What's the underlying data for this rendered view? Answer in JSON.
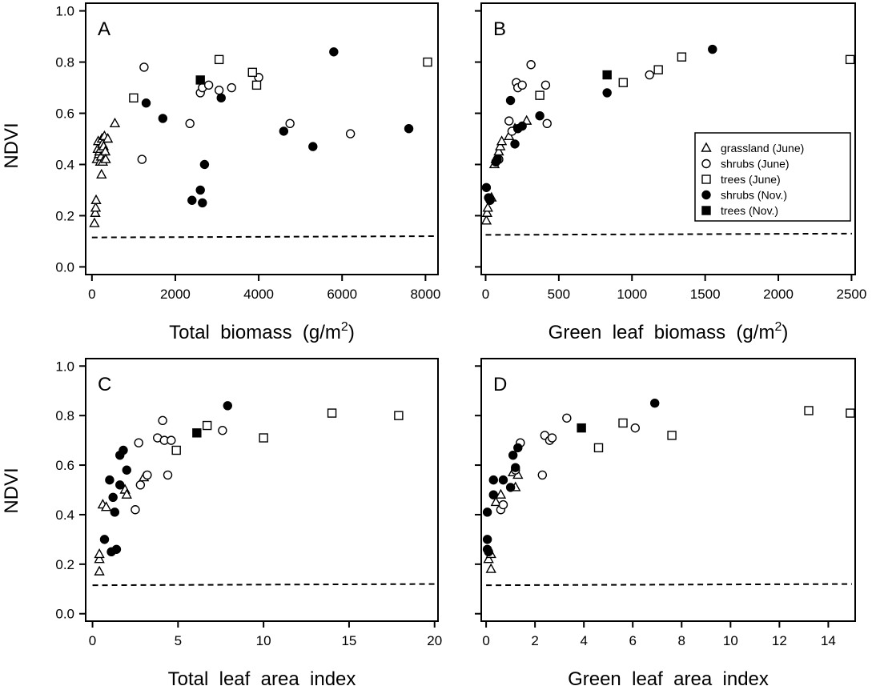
{
  "y_axis_label": "NDVI",
  "legend": [
    {
      "key": "grassland_june",
      "label": "grassland (June)",
      "marker": "triangle-open"
    },
    {
      "key": "shrubs_june",
      "label": "shrubs (June)",
      "marker": "circle-open"
    },
    {
      "key": "trees_june",
      "label": "trees (June)",
      "marker": "square-open"
    },
    {
      "key": "shrubs_nov",
      "label": "shrubs (Nov.)",
      "marker": "circle-filled"
    },
    {
      "key": "trees_nov",
      "label": "trees (Nov.)",
      "marker": "square-filled"
    }
  ],
  "chart_data": [
    {
      "type": "scatter",
      "panel": "A",
      "xlabel": "Total  biomass  (g/m",
      "xlabel_sup": "2",
      "xlabel_tail": ")",
      "ylabel": "NDVI",
      "xlim": [
        -150,
        8300
      ],
      "ylim": [
        -0.03,
        1.03
      ],
      "xticks": [
        0,
        2000,
        4000,
        6000,
        8000
      ],
      "yticks": [
        0.0,
        0.2,
        0.4,
        0.6,
        0.8,
        1.0
      ],
      "ytick_labels": [
        "0.0",
        "0.2",
        "0.4",
        "0.6",
        "0.8",
        "1.0"
      ],
      "show_xtick_labels": true,
      "show_ytick_labels": true,
      "grid": false,
      "baseline": {
        "style": "dashed",
        "from": [
          0,
          0.115
        ],
        "to": [
          8300,
          0.12
        ]
      },
      "series": [
        {
          "key": "grassland_june",
          "points": [
            [
              60,
              0.17
            ],
            [
              80,
              0.21
            ],
            [
              90,
              0.23
            ],
            [
              100,
              0.26
            ],
            [
              120,
              0.42
            ],
            [
              140,
              0.46
            ],
            [
              150,
              0.49
            ],
            [
              170,
              0.44
            ],
            [
              180,
              0.45
            ],
            [
              200,
              0.41
            ],
            [
              210,
              0.46
            ],
            [
              220,
              0.43
            ],
            [
              230,
              0.36
            ],
            [
              240,
              0.5
            ],
            [
              250,
              0.48
            ],
            [
              260,
              0.41
            ],
            [
              280,
              0.47
            ],
            [
              300,
              0.51
            ],
            [
              320,
              0.45
            ],
            [
              330,
              0.42
            ],
            [
              380,
              0.5
            ],
            [
              550,
              0.56
            ]
          ]
        },
        {
          "key": "shrubs_june",
          "points": [
            [
              1200,
              0.42
            ],
            [
              1250,
              0.78
            ],
            [
              2350,
              0.56
            ],
            [
              2600,
              0.68
            ],
            [
              2650,
              0.7
            ],
            [
              2800,
              0.71
            ],
            [
              3050,
              0.69
            ],
            [
              3350,
              0.7
            ],
            [
              4000,
              0.74
            ],
            [
              4750,
              0.56
            ],
            [
              6200,
              0.52
            ]
          ]
        },
        {
          "key": "trees_june",
          "points": [
            [
              1000,
              0.66
            ],
            [
              3050,
              0.81
            ],
            [
              3850,
              0.76
            ],
            [
              3950,
              0.71
            ],
            [
              8050,
              0.8
            ]
          ]
        },
        {
          "key": "shrubs_nov",
          "points": [
            [
              1300,
              0.64
            ],
            [
              1700,
              0.58
            ],
            [
              2400,
              0.26
            ],
            [
              2600,
              0.3
            ],
            [
              2650,
              0.25
            ],
            [
              2700,
              0.4
            ],
            [
              3100,
              0.66
            ],
            [
              4600,
              0.53
            ],
            [
              5300,
              0.47
            ],
            [
              5800,
              0.84
            ],
            [
              7600,
              0.54
            ]
          ]
        },
        {
          "key": "trees_nov",
          "points": [
            [
              2600,
              0.73
            ]
          ]
        }
      ]
    },
    {
      "type": "scatter",
      "panel": "B",
      "xlabel": "Green  leaf  biomass  (g/m",
      "xlabel_sup": "2",
      "xlabel_tail": ")",
      "ylabel": "",
      "xlim": [
        -30,
        2525
      ],
      "ylim": [
        -0.03,
        1.03
      ],
      "xticks": [
        0,
        500,
        1000,
        1500,
        2000,
        2500
      ],
      "yticks": [
        0.0,
        0.2,
        0.4,
        0.6,
        0.8,
        1.0
      ],
      "ytick_labels": [
        "0.0",
        "0.2",
        "0.4",
        "0.6",
        "0.8",
        "1.0"
      ],
      "show_xtick_labels": true,
      "show_ytick_labels": false,
      "grid": false,
      "baseline": {
        "style": "dashed",
        "from": [
          0,
          0.125
        ],
        "to": [
          2525,
          0.13
        ]
      },
      "series": [
        {
          "key": "grassland_june",
          "points": [
            [
              5,
              0.18
            ],
            [
              10,
              0.21
            ],
            [
              15,
              0.23
            ],
            [
              40,
              0.27
            ],
            [
              60,
              0.4
            ],
            [
              70,
              0.42
            ],
            [
              80,
              0.43
            ],
            [
              90,
              0.45
            ],
            [
              100,
              0.47
            ],
            [
              110,
              0.49
            ],
            [
              160,
              0.51
            ],
            [
              200,
              0.54
            ],
            [
              280,
              0.57
            ]
          ]
        },
        {
          "key": "shrubs_june",
          "points": [
            [
              90,
              0.42
            ],
            [
              160,
              0.57
            ],
            [
              180,
              0.53
            ],
            [
              210,
              0.72
            ],
            [
              220,
              0.7
            ],
            [
              250,
              0.71
            ],
            [
              310,
              0.79
            ],
            [
              370,
              0.67
            ],
            [
              410,
              0.71
            ],
            [
              420,
              0.56
            ],
            [
              1120,
              0.75
            ]
          ]
        },
        {
          "key": "trees_june",
          "points": [
            [
              370,
              0.67
            ],
            [
              940,
              0.72
            ],
            [
              1180,
              0.77
            ],
            [
              1340,
              0.82
            ],
            [
              2490,
              0.81
            ]
          ]
        },
        {
          "key": "shrubs_nov",
          "points": [
            [
              5,
              0.31
            ],
            [
              20,
              0.27
            ],
            [
              30,
              0.26
            ],
            [
              70,
              0.41
            ],
            [
              80,
              0.42
            ],
            [
              170,
              0.65
            ],
            [
              200,
              0.48
            ],
            [
              220,
              0.54
            ],
            [
              250,
              0.55
            ],
            [
              370,
              0.59
            ],
            [
              830,
              0.68
            ],
            [
              1550,
              0.85
            ]
          ]
        },
        {
          "key": "trees_nov",
          "points": [
            [
              830,
              0.75
            ]
          ]
        }
      ]
    },
    {
      "type": "scatter",
      "panel": "C",
      "xlabel": "Total  leaf  area  index",
      "ylabel": "NDVI",
      "xlim": [
        -0.4,
        20.2
      ],
      "ylim": [
        -0.03,
        1.03
      ],
      "xticks": [
        0,
        5,
        10,
        15,
        20
      ],
      "yticks": [
        0.0,
        0.2,
        0.4,
        0.6,
        0.8,
        1.0
      ],
      "ytick_labels": [
        "0.0",
        "0.2",
        "0.4",
        "0.6",
        "0.8",
        "1.0"
      ],
      "show_xtick_labels": true,
      "show_ytick_labels": true,
      "grid": false,
      "baseline": {
        "style": "dashed",
        "from": [
          0,
          0.115
        ],
        "to": [
          20.2,
          0.12
        ]
      },
      "series": [
        {
          "key": "grassland_june",
          "points": [
            [
              0.4,
              0.17
            ],
            [
              0.4,
              0.22
            ],
            [
              0.4,
              0.24
            ],
            [
              0.6,
              0.44
            ],
            [
              0.8,
              0.43
            ],
            [
              1.9,
              0.5
            ],
            [
              2.0,
              0.48
            ],
            [
              3.0,
              0.55
            ]
          ]
        },
        {
          "key": "shrubs_june",
          "points": [
            [
              2.5,
              0.42
            ],
            [
              2.7,
              0.69
            ],
            [
              2.8,
              0.52
            ],
            [
              3.2,
              0.56
            ],
            [
              3.8,
              0.71
            ],
            [
              4.1,
              0.78
            ],
            [
              4.2,
              0.7
            ],
            [
              4.4,
              0.56
            ],
            [
              4.6,
              0.7
            ],
            [
              7.6,
              0.74
            ]
          ]
        },
        {
          "key": "trees_june",
          "points": [
            [
              4.9,
              0.66
            ],
            [
              6.7,
              0.76
            ],
            [
              10.0,
              0.71
            ],
            [
              14.0,
              0.81
            ],
            [
              17.9,
              0.8
            ]
          ]
        },
        {
          "key": "shrubs_nov",
          "points": [
            [
              0.7,
              0.3
            ],
            [
              1.0,
              0.54
            ],
            [
              1.1,
              0.25
            ],
            [
              1.2,
              0.47
            ],
            [
              1.3,
              0.41
            ],
            [
              1.4,
              0.26
            ],
            [
              1.6,
              0.52
            ],
            [
              1.6,
              0.64
            ],
            [
              1.8,
              0.66
            ],
            [
              2.0,
              0.58
            ],
            [
              7.9,
              0.84
            ]
          ]
        },
        {
          "key": "trees_nov",
          "points": [
            [
              6.1,
              0.73
            ]
          ]
        }
      ]
    },
    {
      "type": "scatter",
      "panel": "D",
      "xlabel": "Green  leaf  area  index",
      "ylabel": "",
      "xlim": [
        -0.2,
        15.1
      ],
      "ylim": [
        -0.03,
        1.03
      ],
      "xticks": [
        0,
        2,
        4,
        6,
        8,
        10,
        12,
        14
      ],
      "yticks": [
        0.0,
        0.2,
        0.4,
        0.6,
        0.8,
        1.0
      ],
      "ytick_labels": [
        "0.0",
        "0.2",
        "0.4",
        "0.6",
        "0.8",
        "1.0"
      ],
      "show_xtick_labels": true,
      "show_ytick_labels": false,
      "grid": false,
      "baseline": {
        "style": "dashed",
        "from": [
          0,
          0.115
        ],
        "to": [
          15.1,
          0.12
        ]
      },
      "series": [
        {
          "key": "grassland_june",
          "points": [
            [
              0.1,
              0.22
            ],
            [
              0.2,
              0.18
            ],
            [
              0.2,
              0.24
            ],
            [
              0.4,
              0.45
            ],
            [
              0.6,
              0.48
            ],
            [
              1.1,
              0.57
            ],
            [
              1.2,
              0.51
            ],
            [
              1.3,
              0.56
            ]
          ]
        },
        {
          "key": "shrubs_june",
          "points": [
            [
              0.6,
              0.42
            ],
            [
              0.7,
              0.44
            ],
            [
              1.2,
              0.58
            ],
            [
              1.4,
              0.69
            ],
            [
              2.3,
              0.56
            ],
            [
              2.4,
              0.72
            ],
            [
              2.6,
              0.7
            ],
            [
              2.7,
              0.71
            ],
            [
              3.3,
              0.79
            ],
            [
              6.1,
              0.75
            ]
          ]
        },
        {
          "key": "trees_june",
          "points": [
            [
              4.6,
              0.67
            ],
            [
              5.6,
              0.77
            ],
            [
              7.6,
              0.72
            ],
            [
              13.2,
              0.82
            ],
            [
              14.9,
              0.81
            ]
          ]
        },
        {
          "key": "shrubs_nov",
          "points": [
            [
              0.05,
              0.41
            ],
            [
              0.05,
              0.26
            ],
            [
              0.05,
              0.3
            ],
            [
              0.1,
              0.25
            ],
            [
              0.3,
              0.48
            ],
            [
              0.3,
              0.54
            ],
            [
              0.7,
              0.54
            ],
            [
              1.0,
              0.51
            ],
            [
              1.1,
              0.64
            ],
            [
              1.2,
              0.59
            ],
            [
              1.3,
              0.67
            ],
            [
              6.9,
              0.85
            ]
          ]
        },
        {
          "key": "trees_nov",
          "points": [
            [
              3.9,
              0.75
            ]
          ]
        }
      ]
    }
  ]
}
